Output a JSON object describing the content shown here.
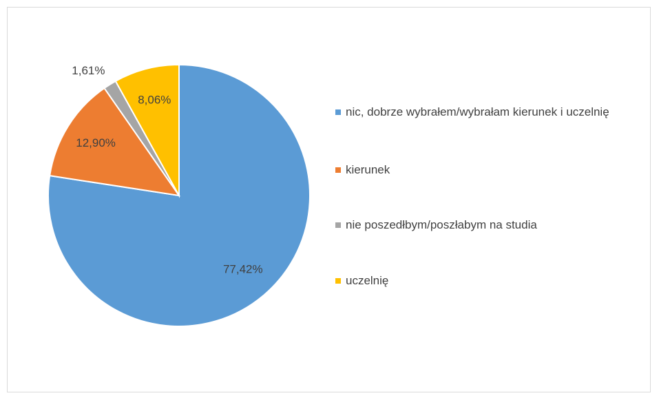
{
  "chart_data": {
    "type": "pie",
    "categories": [
      "nic, dobrze wybrałem/wybrałam kierunek i uczelnię",
      "kierunek",
      "nie poszedłbym/poszłabym na studia",
      "uczelnię"
    ],
    "values": [
      77.42,
      12.9,
      1.61,
      8.06
    ],
    "value_labels": [
      "77,42%",
      "12,90%",
      "1,61%",
      "8,06%"
    ],
    "colors": [
      "#5b9bd5",
      "#ed7d31",
      "#a5a5a5",
      "#ffc000"
    ],
    "legend": "right"
  }
}
